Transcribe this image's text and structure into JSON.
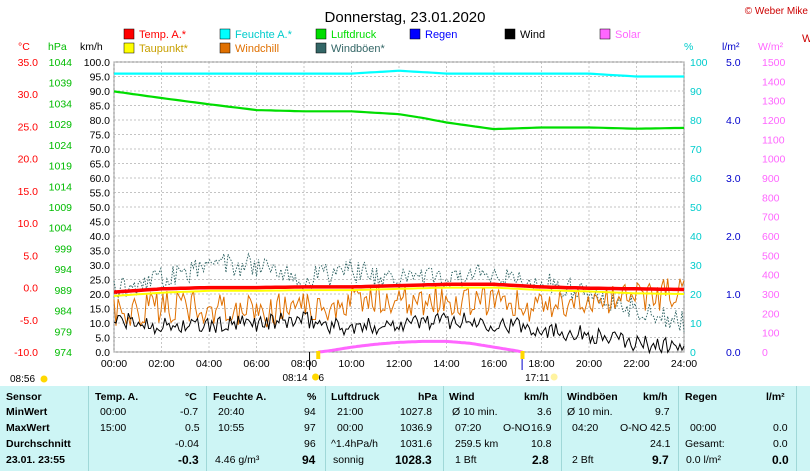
{
  "title": "Donnerstag, 23.01.2020",
  "credit": "© Weber Mike",
  "right_edge_letter": "W",
  "legend": [
    {
      "label": "Temp. A.*",
      "color": "#ff0000"
    },
    {
      "label": "Feuchte A.*",
      "color": "#00ffff"
    },
    {
      "label": "Luftdruck",
      "color": "#00dd00"
    },
    {
      "label": "Regen",
      "color": "#0000ff"
    },
    {
      "label": "Wind",
      "color": "#000000"
    },
    {
      "label": "Solar",
      "color": "#ff66ff"
    },
    {
      "label": "Taupunkt*",
      "color": "#ffff00"
    },
    {
      "label": "Windchill",
      "color": "#e07000"
    },
    {
      "label": "Windböen*",
      "color": "#336666"
    }
  ],
  "chart_data": {
    "type": "line",
    "x": [
      "00:00",
      "02:00",
      "04:00",
      "06:00",
      "08:00",
      "10:00",
      "12:00",
      "14:00",
      "16:00",
      "18:00",
      "20:00",
      "22:00",
      "24:00"
    ],
    "axes": {
      "temp": {
        "label": "°C",
        "ticks": [
          "35.0",
          "30.0",
          "25.0",
          "20.0",
          "15.0",
          "10.0",
          "5.0",
          "0.0",
          "-5.0",
          "-10.0"
        ],
        "range": [
          -10,
          35
        ],
        "color": "#ff0000"
      },
      "pressure": {
        "label": "hPa",
        "ticks": [
          "1044",
          "1039",
          "1034",
          "1029",
          "1024",
          "1019",
          "1014",
          "1009",
          "1004",
          "999",
          "994",
          "989",
          "984",
          "979",
          "974"
        ],
        "range": [
          974,
          1044
        ],
        "color": "#00bb00"
      },
      "wind": {
        "label": "km/h",
        "ticks": [
          "100.0",
          "95.0",
          "90.0",
          "85.0",
          "80.0",
          "75.0",
          "70.0",
          "65.0",
          "60.0",
          "55.0",
          "50.0",
          "45.0",
          "40.0",
          "35.0",
          "30.0",
          "25.0",
          "20.0",
          "15.0",
          "10.0",
          "5.0",
          "0.0"
        ],
        "range": [
          0,
          100
        ],
        "color": "#000000"
      },
      "humidity": {
        "label": "%",
        "ticks": [
          "100",
          "90",
          "80",
          "70",
          "60",
          "50",
          "40",
          "30",
          "20",
          "10",
          "0"
        ],
        "range": [
          0,
          100
        ],
        "color": "#00cccc"
      },
      "rain": {
        "label": "l/m²",
        "ticks": [
          "5.0",
          "4.0",
          "3.0",
          "2.0",
          "1.0",
          "0.0"
        ],
        "range": [
          0,
          5
        ],
        "color": "#0000cc"
      },
      "solar": {
        "label": "W/m²",
        "ticks": [
          "1500",
          "1400",
          "1300",
          "1200",
          "1100",
          "1000",
          "900",
          "800",
          "700",
          "600",
          "500",
          "400",
          "300",
          "200",
          "100",
          "0"
        ],
        "range": [
          0,
          1500
        ],
        "color": "#ff66ff"
      }
    },
    "grid": true,
    "series": [
      {
        "name": "Temp. A.*",
        "axis": "temp",
        "color": "#ff0000",
        "x": [
          0,
          2,
          4,
          6,
          8,
          10,
          12,
          14,
          16,
          18,
          20,
          22,
          24
        ],
        "values": [
          -0.7,
          -0.2,
          0,
          0,
          0.1,
          0.1,
          0.3,
          0.5,
          0.5,
          0.1,
          -0.1,
          -0.2,
          -0.3
        ]
      },
      {
        "name": "Taupunkt*",
        "axis": "temp",
        "color": "#ffff00",
        "x": [
          0,
          2,
          4,
          6,
          8,
          10,
          12,
          14,
          16,
          18,
          20,
          22,
          24
        ],
        "values": [
          -1.3,
          -0.8,
          -0.5,
          -0.5,
          -0.4,
          -0.4,
          -0.2,
          0,
          0,
          -0.4,
          -0.6,
          -0.9,
          -1.0
        ]
      },
      {
        "name": "Feuchte A.*",
        "axis": "humidity",
        "color": "#00ffff",
        "x": [
          0,
          2,
          4,
          6,
          8,
          10,
          12,
          14,
          16,
          18,
          20,
          22,
          24
        ],
        "values": [
          96,
          96,
          96,
          96,
          96,
          96,
          97,
          96,
          96,
          96,
          96,
          95,
          95
        ]
      },
      {
        "name": "Luftdruck",
        "axis": "pressure",
        "color": "#00dd00",
        "x": [
          0,
          2,
          4,
          6,
          8,
          10,
          12,
          13,
          14,
          16,
          18,
          20,
          22,
          24
        ],
        "values": [
          1036.9,
          1035.3,
          1033.8,
          1032.4,
          1032.1,
          1032.1,
          1031.4,
          1030.5,
          1029.4,
          1027.8,
          1028.2,
          1028.2,
          1027.9,
          1028.1
        ]
      },
      {
        "name": "Wind",
        "axis": "wind",
        "color": "#000000",
        "x": [
          0,
          2,
          4,
          6,
          8,
          10,
          12,
          14,
          16,
          18,
          20,
          22,
          24
        ],
        "values": [
          11,
          9,
          9,
          10,
          11,
          8,
          10,
          11,
          10,
          8,
          6,
          3,
          2
        ]
      },
      {
        "name": "Windchill",
        "axis": "temp",
        "color": "#e07000",
        "x": [
          0,
          2,
          4,
          6,
          8,
          10,
          12,
          14,
          16,
          18,
          20,
          22,
          24
        ],
        "values": [
          -4,
          -3,
          -3,
          -4,
          -3,
          -2,
          -2,
          -2,
          -2,
          -3,
          -2,
          -1,
          -1
        ]
      },
      {
        "name": "Windböen*",
        "axis": "wind",
        "color": "#336666",
        "x": [
          0,
          2,
          4,
          6,
          8,
          10,
          12,
          14,
          16,
          18,
          20,
          22,
          24
        ],
        "values": [
          22,
          25,
          30,
          30,
          25,
          28,
          25,
          25,
          28,
          24,
          20,
          15,
          10
        ]
      },
      {
        "name": "Solar",
        "axis": "solar",
        "color": "#ff66ff",
        "x": [
          8.6,
          9,
          10,
          11,
          12,
          13,
          14,
          15,
          16,
          17,
          17.2
        ],
        "values": [
          0,
          5,
          25,
          40,
          50,
          55,
          55,
          45,
          25,
          5,
          0
        ]
      }
    ]
  },
  "markers": {
    "sunrise": "08:56",
    "sunset": "17:11",
    "ruler_left": "08:14",
    "ruler_left_suffix": "6"
  },
  "table": {
    "row_labels": [
      "Sensor",
      "MinWert",
      "MaxWert",
      "Durchschnitt",
      "23.01. 23:55"
    ],
    "temp": {
      "head": "Temp. A.",
      "unit": "°C",
      "min_time": "00:00",
      "min": "-0.7",
      "max_time": "15:00",
      "max": "0.5",
      "avg": "-0.04",
      "cur": "-0.3"
    },
    "hum": {
      "head": "Feuchte A.",
      "unit": "%",
      "min_time": "20:40",
      "min": "94",
      "max_time": "10:55",
      "max": "97",
      "avg": "96",
      "abs": "4.46 g/m³",
      "cur": "94"
    },
    "press": {
      "head": "Luftdruck",
      "unit": "hPa",
      "min_time": "21:00",
      "min": "1027.8",
      "max_time": "00:00",
      "max": "1036.9",
      "trend": "^1.4hPa/h",
      "avg": "1031.6",
      "weather": "sonnig",
      "cur": "1028.3"
    },
    "wind": {
      "head": "Wind",
      "unit": "km/h",
      "avg_label": "Ø 10 min.",
      "avg": "3.6",
      "max_time": "07:20",
      "max_dir": "O-NO",
      "max": "16.9",
      "dist": "259.5 km",
      "day_avg": "10.8",
      "bft": "1 Bft",
      "cur": "2.8"
    },
    "gust": {
      "head": "Windböen",
      "unit": "km/h",
      "avg_label": "Ø 10 min.",
      "avg": "9.7",
      "max_time": "04:20",
      "max_dir": "O-NO",
      "max": "42.5",
      "day_avg": "24.1",
      "bft": "2 Bft",
      "cur": "9.7"
    },
    "rain": {
      "head": "Regen",
      "unit": "l/m²",
      "max_time": "00:00",
      "max": "0.0",
      "total_label": "Gesamt:",
      "total": "0.0",
      "cur": "0.0 l/m²",
      "cur2": "0.0"
    }
  }
}
